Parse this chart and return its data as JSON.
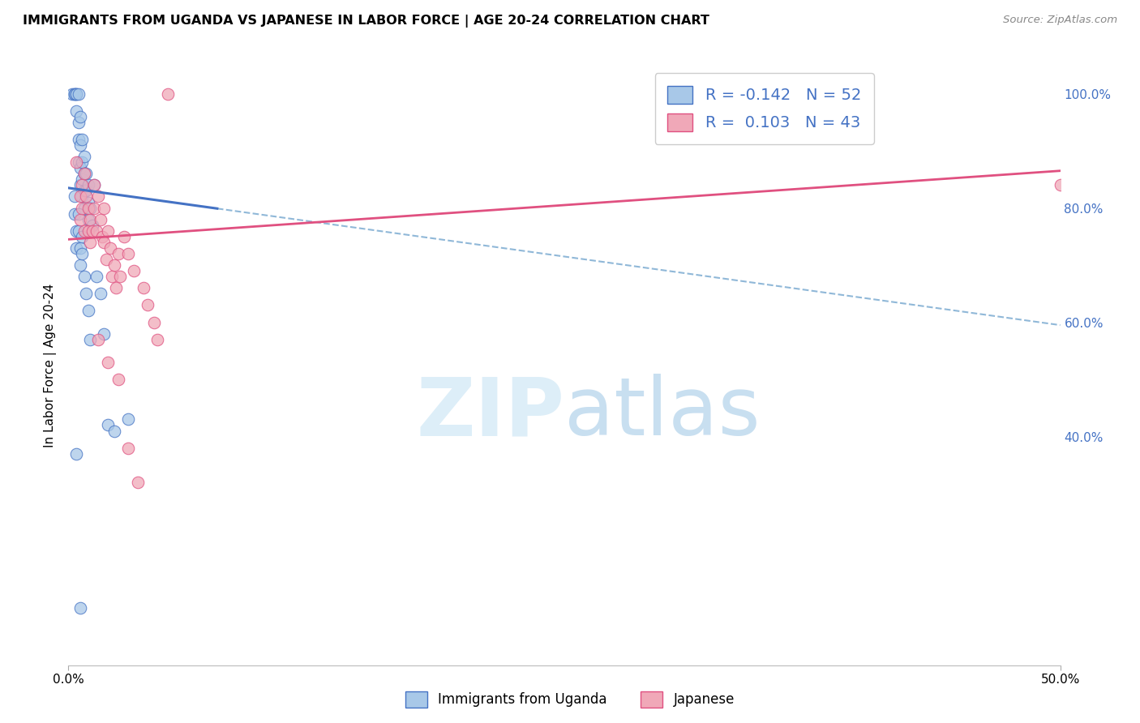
{
  "title": "IMMIGRANTS FROM UGANDA VS JAPANESE IN LABOR FORCE | AGE 20-24 CORRELATION CHART",
  "source": "Source: ZipAtlas.com",
  "ylabel": "In Labor Force | Age 20-24",
  "legend_label1": "Immigrants from Uganda",
  "legend_label2": "Japanese",
  "R1": -0.142,
  "N1": 52,
  "R2": 0.103,
  "N2": 43,
  "color_blue": "#a8c8e8",
  "color_pink": "#f0a8b8",
  "line_color_blue": "#4472c4",
  "line_color_pink": "#e05080",
  "line_color_dashed": "#90b8d8",
  "background_color": "#ffffff",
  "xmin": 0.0,
  "xmax": 0.5,
  "ymin": 0.0,
  "ymax": 1.05,
  "blue_line_x0": 0.0,
  "blue_line_y0": 0.835,
  "blue_line_x1": 0.5,
  "blue_line_y1": 0.595,
  "pink_line_x0": 0.0,
  "pink_line_y0": 0.745,
  "pink_line_x1": 0.5,
  "pink_line_y1": 0.865,
  "uganda_x": [
    0.002,
    0.003,
    0.003,
    0.004,
    0.004,
    0.004,
    0.005,
    0.005,
    0.005,
    0.005,
    0.006,
    0.006,
    0.006,
    0.006,
    0.007,
    0.007,
    0.007,
    0.007,
    0.008,
    0.008,
    0.008,
    0.008,
    0.009,
    0.009,
    0.01,
    0.01,
    0.01,
    0.011,
    0.012,
    0.013,
    0.003,
    0.003,
    0.004,
    0.004,
    0.005,
    0.005,
    0.006,
    0.006,
    0.007,
    0.007,
    0.008,
    0.009,
    0.01,
    0.011,
    0.014,
    0.016,
    0.018,
    0.02,
    0.023,
    0.03,
    0.004,
    0.006
  ],
  "uganda_y": [
    1.0,
    1.0,
    1.0,
    1.0,
    1.0,
    0.97,
    1.0,
    0.95,
    0.92,
    0.88,
    0.96,
    0.91,
    0.87,
    0.84,
    0.92,
    0.88,
    0.85,
    0.82,
    0.89,
    0.86,
    0.83,
    0.8,
    0.86,
    0.83,
    0.84,
    0.81,
    0.78,
    0.8,
    0.77,
    0.84,
    0.82,
    0.79,
    0.76,
    0.73,
    0.79,
    0.76,
    0.73,
    0.7,
    0.75,
    0.72,
    0.68,
    0.65,
    0.62,
    0.57,
    0.68,
    0.65,
    0.58,
    0.42,
    0.41,
    0.43,
    0.37,
    0.1
  ],
  "japanese_x": [
    0.004,
    0.006,
    0.006,
    0.007,
    0.007,
    0.008,
    0.008,
    0.009,
    0.01,
    0.01,
    0.011,
    0.011,
    0.012,
    0.013,
    0.013,
    0.014,
    0.015,
    0.016,
    0.017,
    0.018,
    0.018,
    0.019,
    0.02,
    0.021,
    0.022,
    0.023,
    0.024,
    0.025,
    0.026,
    0.028,
    0.03,
    0.033,
    0.038,
    0.04,
    0.043,
    0.045,
    0.05,
    0.015,
    0.02,
    0.025,
    0.03,
    0.035,
    0.5
  ],
  "japanese_y": [
    0.88,
    0.82,
    0.78,
    0.84,
    0.8,
    0.86,
    0.76,
    0.82,
    0.8,
    0.76,
    0.78,
    0.74,
    0.76,
    0.84,
    0.8,
    0.76,
    0.82,
    0.78,
    0.75,
    0.8,
    0.74,
    0.71,
    0.76,
    0.73,
    0.68,
    0.7,
    0.66,
    0.72,
    0.68,
    0.75,
    0.72,
    0.69,
    0.66,
    0.63,
    0.6,
    0.57,
    1.0,
    0.57,
    0.53,
    0.5,
    0.38,
    0.32,
    0.84
  ]
}
